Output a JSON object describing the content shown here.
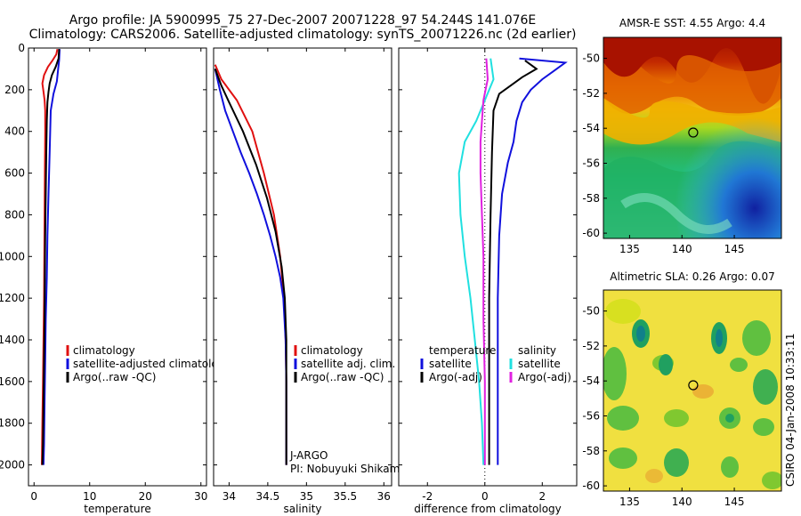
{
  "title_line1": "Argo profile: JA 5900995_75 27-Dec-2007 20071228_97 54.244S 141.076E",
  "title_line2": "Climatology: CARS2006. Satellite-adjusted climatology: synTS_20071226.nc (2d earlier)",
  "credit": "CSIRO 04-Jan-2008 10:33:11",
  "colors": {
    "red": "#e01010",
    "blue": "#1010dd",
    "black": "#000000",
    "cyan": "#20e0e0",
    "magenta": "#e020e0"
  },
  "chart_data": [
    {
      "type": "line",
      "id": "temperature",
      "xlabel": "temperature",
      "ylabel": "",
      "xlim": [
        -1,
        31
      ],
      "ylim": [
        0,
        2100
      ],
      "y_reversed": true,
      "xticks": [
        0,
        10,
        20,
        30
      ],
      "yticks": [
        0,
        200,
        400,
        600,
        800,
        1000,
        1200,
        1400,
        1600,
        1800,
        2000
      ],
      "legend": {
        "position": "lower-right",
        "entries": [
          "climatology",
          "satellite-adjusted climatology",
          "Argo(..raw -QC)"
        ]
      },
      "series": [
        {
          "name": "climatology",
          "color": "red",
          "points": [
            [
              4.2,
              5
            ],
            [
              4.0,
              30
            ],
            [
              3.3,
              60
            ],
            [
              2.5,
              90
            ],
            [
              1.8,
              130
            ],
            [
              1.5,
              170
            ],
            [
              1.7,
              210
            ],
            [
              1.9,
              250
            ],
            [
              2.0,
              300
            ],
            [
              2.0,
              400
            ],
            [
              1.95,
              600
            ],
            [
              1.9,
              800
            ],
            [
              1.85,
              1000
            ],
            [
              1.8,
              1200
            ],
            [
              1.7,
              1400
            ],
            [
              1.6,
              1600
            ],
            [
              1.5,
              1800
            ],
            [
              1.4,
              2000
            ]
          ]
        },
        {
          "name": "satellite-adjusted climatology",
          "color": "blue",
          "points": [
            [
              4.6,
              5
            ],
            [
              4.5,
              60
            ],
            [
              4.3,
              110
            ],
            [
              4.1,
              160
            ],
            [
              3.5,
              220
            ],
            [
              3.0,
              300
            ],
            [
              2.8,
              500
            ],
            [
              2.6,
              700
            ],
            [
              2.4,
              900
            ],
            [
              2.3,
              1100
            ],
            [
              2.1,
              1300
            ],
            [
              2.0,
              1500
            ],
            [
              1.9,
              1700
            ],
            [
              1.8,
              1900
            ],
            [
              1.7,
              2000
            ]
          ]
        },
        {
          "name": "Argo(..raw -QC)",
          "color": "black",
          "points": [
            [
              4.5,
              5
            ],
            [
              4.4,
              50
            ],
            [
              3.9,
              90
            ],
            [
              3.2,
              130
            ],
            [
              2.8,
              170
            ],
            [
              2.6,
              210
            ],
            [
              2.4,
              260
            ],
            [
              2.3,
              350
            ],
            [
              2.2,
              500
            ],
            [
              2.1,
              700
            ],
            [
              2.0,
              900
            ],
            [
              1.95,
              1100
            ],
            [
              1.9,
              1300
            ],
            [
              1.8,
              1500
            ],
            [
              1.7,
              1700
            ],
            [
              1.6,
              1900
            ],
            [
              1.5,
              2000
            ]
          ]
        }
      ]
    },
    {
      "type": "line",
      "id": "salinity",
      "xlabel": "salinity",
      "ylabel": "",
      "xlim": [
        33.8,
        36.1
      ],
      "ylim": [
        0,
        2100
      ],
      "y_reversed": true,
      "xticks": [
        34,
        34.5,
        35,
        35.5,
        36
      ],
      "annotation": [
        "J-ARGO",
        "PI: Nobuyuki Shikama"
      ],
      "legend": {
        "position": "lower-right",
        "entries": [
          "climatology",
          "satellite adj. clim.",
          "Argo(..raw -QC)"
        ]
      },
      "series": [
        {
          "name": "climatology",
          "color": "red",
          "points": [
            [
              33.82,
              80
            ],
            [
              33.9,
              150
            ],
            [
              34.1,
              250
            ],
            [
              34.3,
              400
            ],
            [
              34.45,
              600
            ],
            [
              34.58,
              800
            ],
            [
              34.66,
              1000
            ],
            [
              34.71,
              1200
            ],
            [
              34.73,
              1400
            ],
            [
              34.74,
              1600
            ],
            [
              34.74,
              1800
            ],
            [
              34.74,
              2000
            ]
          ]
        },
        {
          "name": "satellite adj. clim.",
          "color": "blue",
          "points": [
            [
              33.82,
              100
            ],
            [
              33.88,
              200
            ],
            [
              33.95,
              300
            ],
            [
              34.05,
              400
            ],
            [
              34.15,
              500
            ],
            [
              34.26,
              600
            ],
            [
              34.36,
              700
            ],
            [
              34.45,
              800
            ],
            [
              34.53,
              900
            ],
            [
              34.6,
              1000
            ],
            [
              34.66,
              1100
            ],
            [
              34.7,
              1200
            ],
            [
              34.73,
              1400
            ],
            [
              34.74,
              1600
            ],
            [
              34.74,
              1800
            ],
            [
              34.74,
              2000
            ]
          ]
        },
        {
          "name": "Argo(..raw -QC)",
          "color": "black",
          "points": [
            [
              33.82,
              100
            ],
            [
              33.9,
              180
            ],
            [
              34.0,
              260
            ],
            [
              34.18,
              400
            ],
            [
              34.35,
              560
            ],
            [
              34.49,
              720
            ],
            [
              34.6,
              880
            ],
            [
              34.68,
              1050
            ],
            [
              34.72,
              1200
            ],
            [
              34.74,
              1400
            ],
            [
              34.74,
              1600
            ],
            [
              34.74,
              1800
            ],
            [
              34.74,
              2000
            ]
          ]
        }
      ]
    },
    {
      "type": "line",
      "id": "difference",
      "xlabel": "difference from climatology",
      "ylabel": "",
      "xlim": [
        -3,
        3.2
      ],
      "ylim": [
        0,
        2100
      ],
      "y_reversed": true,
      "xticks": [
        -2,
        0,
        2
      ],
      "legend": {
        "position": "lower-center",
        "columns": [
          {
            "header": "temperature",
            "entries": [
              "satellite",
              "Argo(-adj)"
            ]
          },
          {
            "header": "salinity",
            "entries": [
              "satellite",
              "Argo(-adj)"
            ]
          }
        ]
      },
      "series": [
        {
          "name": "temperature satellite",
          "color": "blue",
          "points": [
            [
              1.2,
              50
            ],
            [
              2.8,
              70
            ],
            [
              2.4,
              110
            ],
            [
              2.0,
              150
            ],
            [
              1.6,
              200
            ],
            [
              1.3,
              260
            ],
            [
              1.1,
              350
            ],
            [
              1.0,
              450
            ],
            [
              0.8,
              550
            ],
            [
              0.6,
              700
            ],
            [
              0.5,
              900
            ],
            [
              0.45,
              1200
            ],
            [
              0.45,
              1500
            ],
            [
              0.45,
              1800
            ],
            [
              0.45,
              2000
            ]
          ]
        },
        {
          "name": "temperature Argo(-adj)",
          "color": "black",
          "points": [
            [
              1.4,
              60
            ],
            [
              1.8,
              100
            ],
            [
              1.3,
              140
            ],
            [
              0.9,
              180
            ],
            [
              0.5,
              220
            ],
            [
              0.3,
              300
            ],
            [
              0.25,
              500
            ],
            [
              0.2,
              800
            ],
            [
              0.15,
              1200
            ],
            [
              0.15,
              1600
            ],
            [
              0.15,
              2000
            ]
          ]
        },
        {
          "name": "salinity satellite",
          "color": "cyan",
          "points": [
            [
              0.2,
              50
            ],
            [
              0.3,
              150
            ],
            [
              0.0,
              250
            ],
            [
              -0.3,
              350
            ],
            [
              -0.7,
              450
            ],
            [
              -0.9,
              600
            ],
            [
              -0.85,
              800
            ],
            [
              -0.7,
              1000
            ],
            [
              -0.5,
              1200
            ],
            [
              -0.35,
              1400
            ],
            [
              -0.2,
              1600
            ],
            [
              -0.1,
              1800
            ],
            [
              -0.05,
              2000
            ]
          ]
        },
        {
          "name": "salinity Argo(-adj)",
          "color": "magenta",
          "points": [
            [
              0.05,
              50
            ],
            [
              0.1,
              150
            ],
            [
              -0.05,
              250
            ],
            [
              -0.1,
              350
            ],
            [
              -0.15,
              450
            ],
            [
              -0.15,
              600
            ],
            [
              -0.1,
              800
            ],
            [
              -0.05,
              1000
            ],
            [
              -0.05,
              1300
            ],
            [
              0.0,
              1600
            ],
            [
              0.0,
              2000
            ]
          ]
        }
      ]
    },
    {
      "type": "heatmap",
      "id": "sst",
      "title": "AMSR-E SST: 4.55  Argo: 4.4",
      "xlim": [
        132.5,
        149.5
      ],
      "ylim": [
        -60.3,
        -48.8
      ],
      "xticks": [
        135,
        140,
        145
      ],
      "yticks": [
        -50,
        -52,
        -54,
        -56,
        -58,
        -60
      ],
      "marker": {
        "lon": 141.076,
        "lat": -54.244
      }
    },
    {
      "type": "heatmap",
      "id": "sla",
      "title": "Altimetric SLA: 0.26  Argo: 0.07",
      "xlim": [
        132.5,
        149.5
      ],
      "ylim": [
        -60.3,
        -48.8
      ],
      "xticks": [
        135,
        140,
        145
      ],
      "yticks": [
        -50,
        -52,
        -54,
        -56,
        -58,
        -60
      ],
      "marker": {
        "lon": 141.076,
        "lat": -54.244
      }
    }
  ]
}
